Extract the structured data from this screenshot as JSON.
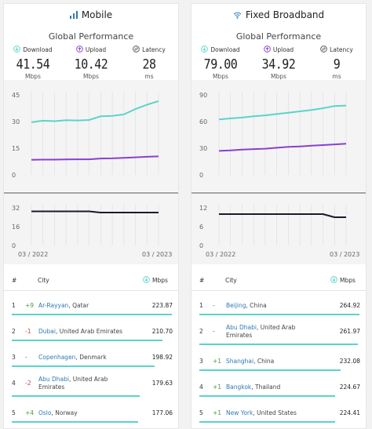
{
  "mobile": {
    "title": "Mobile",
    "subtitle": "Global Performance",
    "download": {
      "label": "Download",
      "value": "41.54",
      "unit": "Mbps"
    },
    "upload": {
      "label": "Upload",
      "value": "10.42",
      "unit": "Mbps"
    },
    "latency": {
      "label": "Latency",
      "value": "28",
      "unit": "ms"
    },
    "table": {
      "rank_header": "#",
      "city_header": "City",
      "speed_header": "Mbps",
      "rows": [
        {
          "rank": "1",
          "change": "+9",
          "city": "Ar-Rayyan",
          "country": ", Qatar",
          "speed": "223.87",
          "fill": 1.0
        },
        {
          "rank": "2",
          "change": "-1",
          "city": "Dubai",
          "country": ", United Arab Emirates",
          "speed": "210.70",
          "fill": 0.94
        },
        {
          "rank": "3",
          "change": "-",
          "city": "Copenhagen",
          "country": ", Denmark",
          "speed": "198.92",
          "fill": 0.89
        },
        {
          "rank": "4",
          "change": "-2",
          "city": "Abu Dhabi",
          "country": ", United Arab",
          "country2": "Emirates",
          "speed": "179.63",
          "fill": 0.8
        },
        {
          "rank": "5",
          "change": "+4",
          "city": "Oslo",
          "country": ", Norway",
          "speed": "177.06",
          "fill": 0.79
        }
      ]
    }
  },
  "broadband": {
    "title": "Fixed Broadband",
    "subtitle": "Global Performance",
    "download": {
      "label": "Download",
      "value": "79.00",
      "unit": "Mbps"
    },
    "upload": {
      "label": "Upload",
      "value": "34.92",
      "unit": "Mbps"
    },
    "latency": {
      "label": "Latency",
      "value": "9",
      "unit": "ms"
    },
    "table": {
      "rank_header": "#",
      "city_header": "City",
      "speed_header": "Mbps",
      "rows": [
        {
          "rank": "1",
          "change": "-",
          "city": "Beijing",
          "country": ", China",
          "speed": "264.92",
          "fill": 1.0
        },
        {
          "rank": "2",
          "change": "-",
          "city": "Abu Dhabi",
          "country": ", United Arab",
          "country2": "Emirates",
          "speed": "261.97",
          "fill": 0.99
        },
        {
          "rank": "3",
          "change": "+1",
          "city": "Shanghai",
          "country": ", China",
          "speed": "232.08",
          "fill": 0.88
        },
        {
          "rank": "4",
          "change": "+1",
          "city": "Bangkok",
          "country": ", Thailand",
          "speed": "224.67",
          "fill": 0.85
        },
        {
          "rank": "5",
          "change": "+1",
          "city": "New York",
          "country": ", United States",
          "speed": "224.41",
          "fill": 0.85
        }
      ]
    }
  },
  "colors": {
    "download": "#5bd4c9",
    "upload": "#8a3fd0",
    "latency": "#1a1a2e",
    "link": "#2f7ab2"
  },
  "chart_data": [
    {
      "type": "line",
      "panel": "mobile",
      "chart": "speed",
      "ylim": [
        0,
        45
      ],
      "yticks": [
        "45",
        "30",
        "15",
        "0"
      ],
      "series": [
        {
          "values": [
            29.6,
            30.5,
            30.2,
            30.8,
            30.6,
            30.9,
            33.0,
            33.2,
            34.0,
            37.0,
            39.5,
            41.5
          ]
        },
        {
          "values": [
            8.5,
            8.6,
            8.6,
            8.7,
            8.8,
            8.8,
            9.2,
            9.3,
            9.6,
            9.9,
            10.2,
            10.4
          ]
        }
      ]
    },
    {
      "type": "line",
      "panel": "mobile",
      "chart": "latency",
      "ylim": [
        0,
        32
      ],
      "yticks": [
        "32",
        "16",
        "0"
      ],
      "xticks": [
        "03 / 2022",
        "03 / 2023"
      ],
      "series": [
        {
          "values": [
            29,
            29,
            29,
            29,
            29,
            29,
            28,
            28,
            28,
            28,
            28,
            28
          ]
        }
      ]
    },
    {
      "type": "line",
      "panel": "broadband",
      "chart": "speed",
      "ylim": [
        0,
        90
      ],
      "yticks": [
        "90",
        "60",
        "30",
        "0"
      ],
      "series": [
        {
          "values": [
            62.5,
            63.5,
            64.5,
            66,
            67,
            68.5,
            70,
            71.5,
            73,
            75,
            77.5,
            78
          ]
        },
        {
          "values": [
            27,
            27.5,
            28.5,
            29,
            29.5,
            30.5,
            31.5,
            32,
            32.8,
            33.5,
            34.3,
            35
          ]
        }
      ]
    },
    {
      "type": "line",
      "panel": "broadband",
      "chart": "latency",
      "ylim": [
        0,
        12
      ],
      "yticks": [
        "12",
        "6",
        "0"
      ],
      "xticks": [
        "03 / 2022",
        "03 / 2023"
      ],
      "series": [
        {
          "values": [
            10,
            10,
            10,
            10,
            10,
            10,
            10,
            10,
            10,
            10,
            9,
            9
          ]
        }
      ]
    }
  ]
}
